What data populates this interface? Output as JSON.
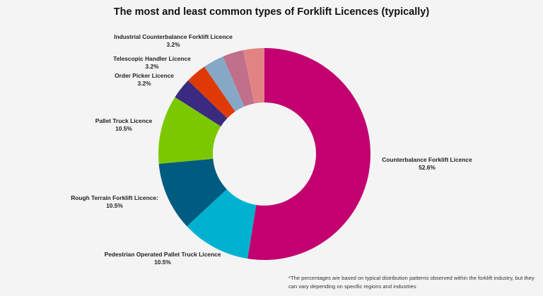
{
  "chart_data": {
    "type": "pie",
    "style": "donut",
    "title": "The most and least common types of Forklift Licences (typically)",
    "slices": [
      {
        "label": "Counterbalance Forklift Licence",
        "value": 52.6,
        "value_label": "52.6%",
        "color": "#c2006f"
      },
      {
        "label": "Pedestrian Operated Pallet Truck Licence",
        "value": 10.5,
        "value_label": "10.5%",
        "color": "#00b2cf"
      },
      {
        "label": "Rough Terrain Forklift Licence:",
        "value": 10.5,
        "value_label": "10.5%",
        "color": "#005b80"
      },
      {
        "label": "Pallet Truck Licence",
        "value": 10.5,
        "value_label": "10.5%",
        "color": "#7cc800"
      },
      {
        "label": "Order Picker Licence",
        "value": 3.2,
        "value_label": "3.2%",
        "color": "#3a2a80"
      },
      {
        "label": "",
        "value": 3.2,
        "value_label": "",
        "color": "#df3a06"
      },
      {
        "label": "Telescopic Handler Licence",
        "value": 3.2,
        "value_label": "3.2%",
        "color": "#86a8c6"
      },
      {
        "label": "",
        "value": 3.2,
        "value_label": "",
        "color": "#c0708a"
      },
      {
        "label": "Industrial Counterbalance Forklift Licence",
        "value": 3.2,
        "value_label": "3.2%",
        "color": "#e28383"
      }
    ],
    "legend": "none",
    "footnote": "*The percentages are based on typical distribution patterns observed within the forklift industry, but they can vary depending on specific regions and industries"
  }
}
